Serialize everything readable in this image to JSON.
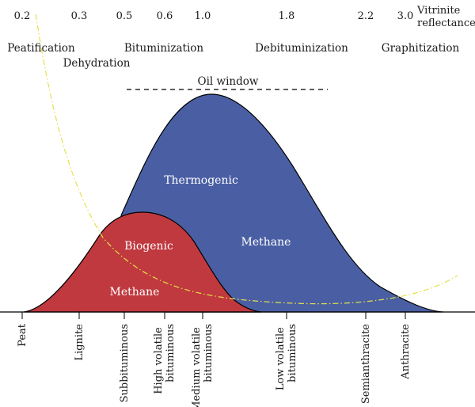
{
  "reflectance": {
    "values": [
      "0.2",
      "0.3",
      "0.5",
      "0.6",
      "1.0",
      "1.8",
      "2.2",
      "3.0"
    ],
    "label_line1": "Vitrinite",
    "label_line2": "reflectance"
  },
  "stages": [
    "Peatification",
    "Dehydration",
    "Bituminization",
    "Debituminization",
    "Graphitization"
  ],
  "oil_window": "Oil window",
  "regions": {
    "thermogenic": {
      "label_top": "Thermogenic",
      "label_bottom": "Methane",
      "color": "#4a5fa3"
    },
    "biogenic": {
      "label_top": "Biogenic",
      "label_bottom": "Methane",
      "color": "#c0393f"
    }
  },
  "curve_color": "#e6e04a",
  "ranks": [
    {
      "line1": "Peat",
      "line2": ""
    },
    {
      "line1": "Lignite",
      "line2": ""
    },
    {
      "line1": "Subbituminous",
      "line2": ""
    },
    {
      "line1": "High volatile",
      "line2": "bituminous"
    },
    {
      "line1": "Medium volatile",
      "line2": "bituminous"
    },
    {
      "line1": "Low volatile",
      "line2": "bituminous"
    },
    {
      "line1": "Semianthracite",
      "line2": ""
    },
    {
      "line1": "Anthracite",
      "line2": ""
    }
  ]
}
